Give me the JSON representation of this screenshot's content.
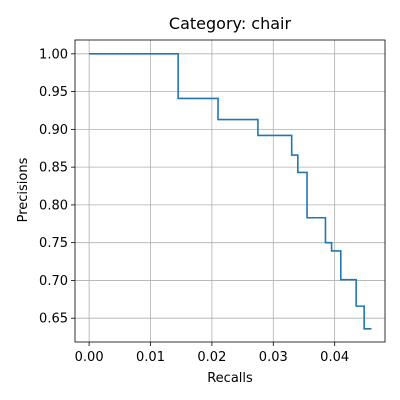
{
  "chart_data": {
    "type": "line",
    "title": "Category: chair",
    "xlabel": "Recalls",
    "ylabel": "Precisions",
    "xlim": [
      -0.0023,
      0.0482
    ],
    "ylim": [
      0.6185,
      1.0183
    ],
    "x_ticks": [
      "0.00",
      "0.01",
      "0.02",
      "0.03",
      "0.04"
    ],
    "y_ticks": [
      "0.65",
      "0.70",
      "0.75",
      "0.80",
      "0.85",
      "0.90",
      "0.95",
      "1.00"
    ],
    "grid": true,
    "line_style": "steps-post",
    "line_color": "#1f77b4",
    "series": [
      {
        "x": [
          0.0,
          0.0145,
          0.021,
          0.0275,
          0.033,
          0.034,
          0.0355,
          0.0385,
          0.0395,
          0.041,
          0.0435,
          0.0448,
          0.046
        ],
        "y": [
          1.0,
          0.941,
          0.913,
          0.892,
          0.866,
          0.843,
          0.783,
          0.75,
          0.739,
          0.701,
          0.666,
          0.636,
          0.636
        ]
      }
    ]
  }
}
